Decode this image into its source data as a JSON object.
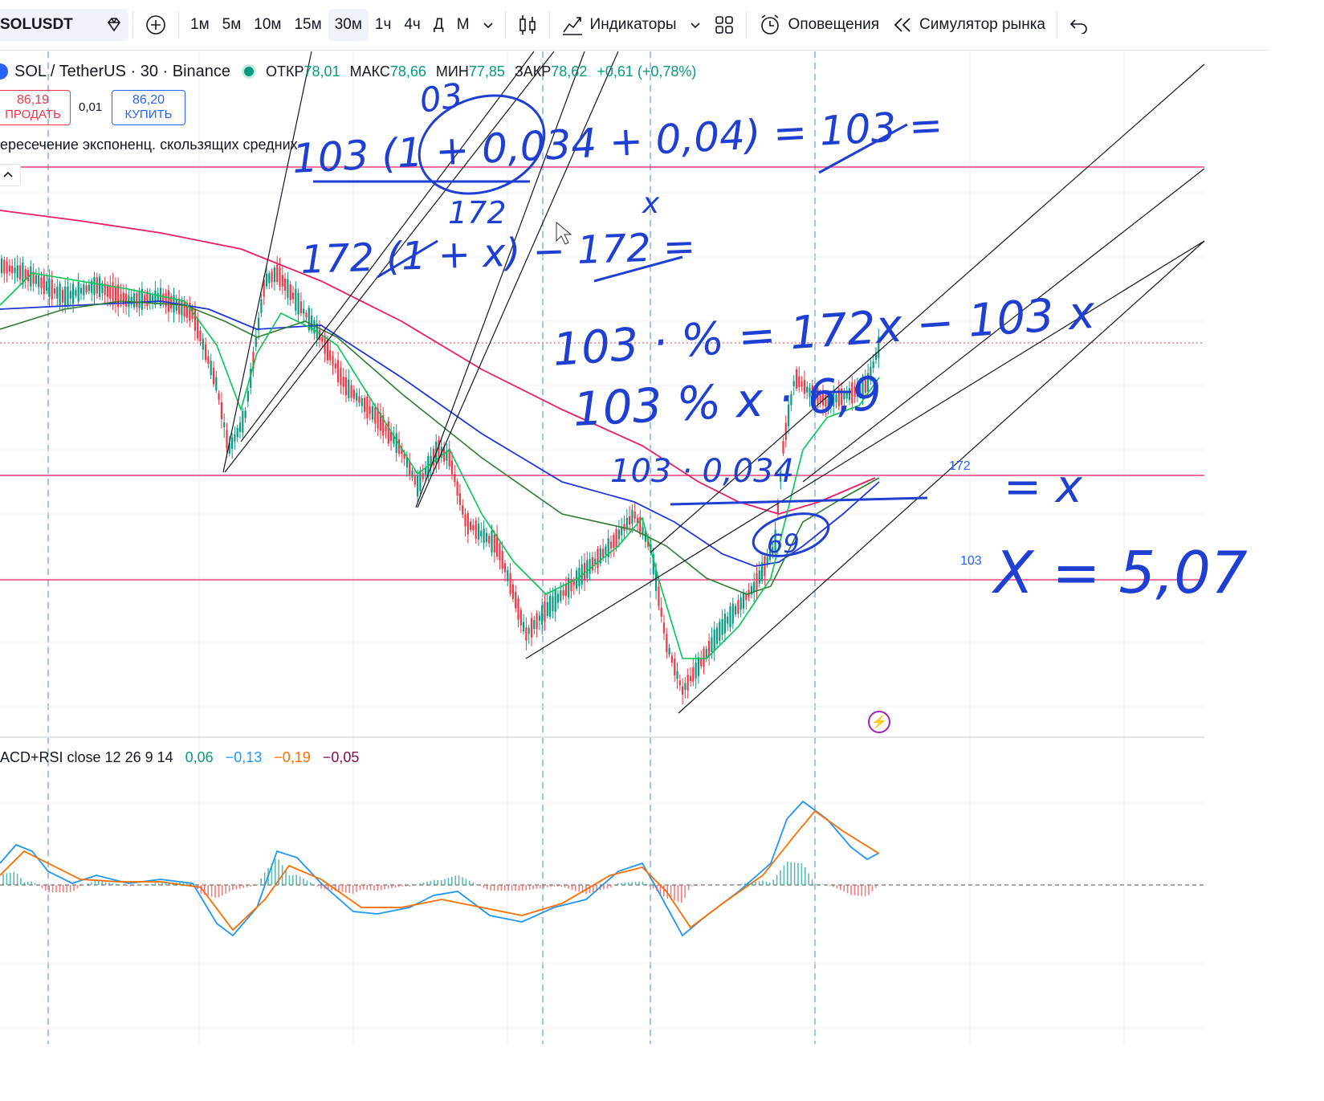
{
  "toolbar": {
    "symbol": "SOLUSDT",
    "intervals": [
      "1м",
      "5м",
      "10м",
      "15м",
      "30м",
      "1ч",
      "4ч",
      "Д",
      "М"
    ],
    "active_interval": "30м",
    "indicators_label": "Индикаторы",
    "alerts_label": "Оповещения",
    "replay_label": "Симулятор рынка"
  },
  "legend": {
    "title": "SOL / TetherUS · 30 · Binance",
    "open_k": "ОТКР",
    "open_v": "78,01",
    "high_k": "МАКС",
    "high_v": "78,66",
    "low_k": "МИН",
    "low_v": "77,85",
    "close_k": "ЗАКР",
    "close_v": "78,62",
    "change": "+0,61 (+0,78%)"
  },
  "trade": {
    "sell_price": "86,19",
    "sell_label": "ПРОДАТЬ",
    "spread": "0,01",
    "buy_price": "86,20",
    "buy_label": "КУПИТЬ"
  },
  "indicator_title": "ересечение экспоненц. скользящих средних",
  "macd": {
    "title": "ACD+RSI close 12 26 9 14",
    "v1": "0,06",
    "v2": "−0,13",
    "v3": "−0,19",
    "v4": "−0,05",
    "colors": {
      "v1": "#089981",
      "v2": "#2196f3",
      "v3": "#ff6d00",
      "v4": "#880e4f"
    }
  },
  "price_labels": {
    "level_172": "172",
    "level_103": "103"
  },
  "handwriting": {
    "line1": "103 (1 + 0,034 + 0,04) = 103 =",
    "line1_sub": "x",
    "line2_top": "172",
    "line2": "172 (1 + x) − 172 =",
    "line3": "103 · % = 172x − 103 x",
    "line4": "103 % x · 6,9",
    "line5": "103 · 0,034",
    "line5_right": "= x",
    "circle_mark": "69",
    "top_mark": "03",
    "result": "X = 5,07"
  },
  "colors": {
    "up": "#089981",
    "down": "#f23645",
    "ink": "#1e3fd1",
    "level": "#e91e63"
  }
}
